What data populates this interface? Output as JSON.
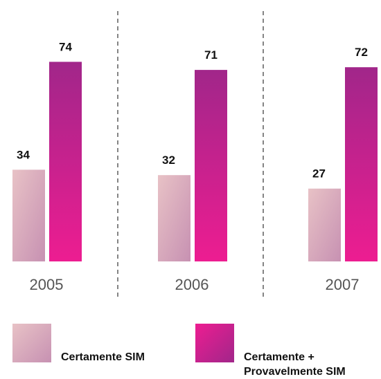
{
  "chart_data": {
    "type": "bar",
    "categories": [
      "2005",
      "2006",
      "2007"
    ],
    "series": [
      {
        "name": "Certamente SIM",
        "values": [
          34,
          32,
          27
        ]
      },
      {
        "name": "Certamente + Provavelmente SIM",
        "values": [
          74,
          71,
          72
        ]
      }
    ],
    "ylim": [
      0,
      80
    ],
    "grid": false,
    "separators": "dashed",
    "legend_position": "bottom",
    "colors": {
      "series1_light": "#e8c2c6",
      "series1_dark": "#c791b2",
      "series2_light": "#ed1d91",
      "series2_dark": "#a1268a"
    }
  },
  "legend": {
    "items": [
      {
        "label": "Certamente SIM"
      },
      {
        "label_line1": "Certamente +",
        "label_line2": "Provavelmente SIM"
      }
    ]
  }
}
